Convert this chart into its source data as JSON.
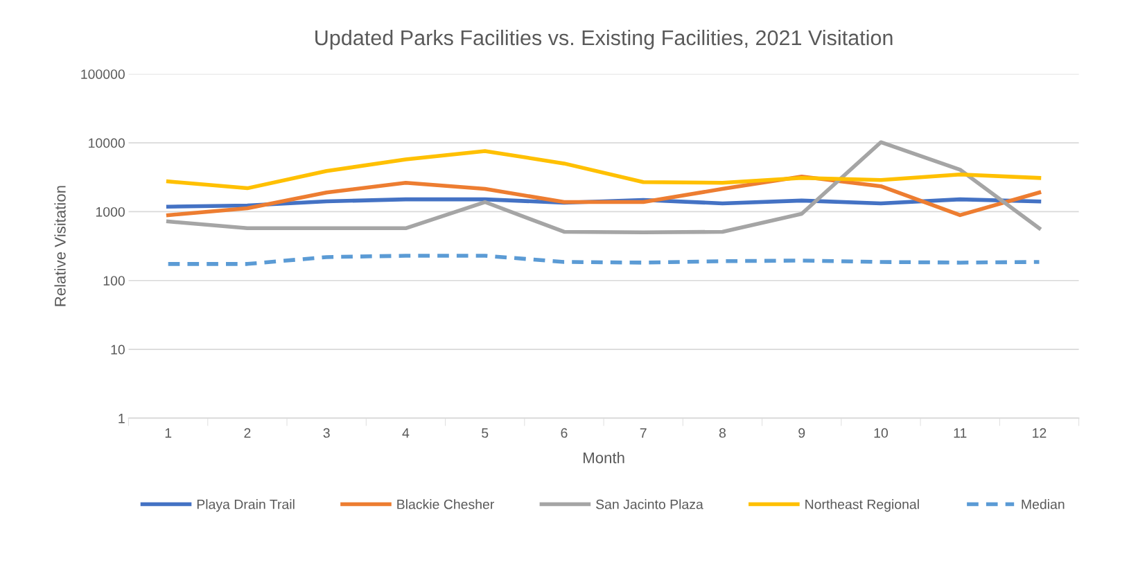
{
  "chart_data": {
    "type": "line",
    "title": "Updated Parks Facilities vs. Existing Facilities, 2021 Visitation",
    "xlabel": "Month",
    "ylabel": "Relative Visitation",
    "categories": [
      "1",
      "2",
      "3",
      "4",
      "5",
      "6",
      "7",
      "8",
      "9",
      "10",
      "11",
      "12"
    ],
    "log": "y",
    "ylim": [
      1,
      100000
    ],
    "yticks": [
      1,
      10,
      100,
      1000,
      10000,
      100000
    ],
    "grid": "y",
    "legend": "bottom",
    "marker": "none",
    "series": [
      {
        "name": "Playa Drain Trail",
        "color": "#4472c4",
        "values": [
          1180,
          1230,
          1410,
          1510,
          1510,
          1350,
          1480,
          1320,
          1450,
          1320,
          1510,
          1410
        ]
      },
      {
        "name": "Blackie Chesher",
        "color": "#ed7d31",
        "values": [
          890,
          1120,
          1900,
          2630,
          2140,
          1380,
          1380,
          2140,
          3240,
          2340,
          890,
          1900
        ]
      },
      {
        "name": "San Jacinto Plaza",
        "color": "#a5a5a5",
        "values": [
          720,
          575,
          575,
          575,
          1380,
          510,
          500,
          510,
          930,
          10200,
          4070,
          575
        ]
      },
      {
        "name": "Northeast Regional",
        "color": "#ffc000",
        "values": [
          2750,
          2190,
          3890,
          5750,
          7590,
          5010,
          2690,
          2630,
          3090,
          2880,
          3470,
          3090
        ]
      },
      {
        "name": "Median",
        "color": "#5b9bd5",
        "line_style": "dashed",
        "values": [
          174,
          174,
          219,
          229,
          229,
          186,
          182,
          191,
          195,
          186,
          182,
          186
        ]
      }
    ]
  }
}
